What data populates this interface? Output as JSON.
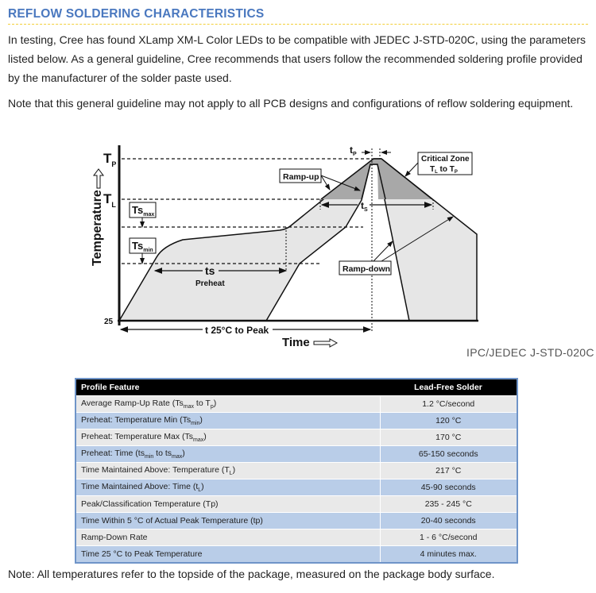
{
  "title": "REFLOW SOLDERING CHARACTERISTICS",
  "paragraphs": [
    "In testing, Cree has found XLamp XM-L Color LEDs to be compatible with JEDEC J-STD-020C, using the parameters listed below. As a general guideline, Cree recommends that users follow the recommended soldering profile provided by the manufacturer of the solder paste used.",
    "Note that this general guideline may not apply to all PCB designs and configurations of reflow soldering equipment."
  ],
  "diagram": {
    "y_axis_label": "Temperature",
    "x_axis_label": "Time",
    "tp_label": "T",
    "tp_sub": "P",
    "tl_label": "T",
    "tl_sub": "L",
    "tsmax_label": "Ts",
    "tsmax_sub": "max",
    "tsmin_label": "Ts",
    "tsmin_sub": "min",
    "t25_label": "25",
    "ts_label": "ts",
    "preheat_label": "Preheat",
    "t25_to_peak_label": "t 25°C to Peak",
    "tp_time_label": "t",
    "tp_time_sub": "P",
    "tl_time_label": "t",
    "tl_time_sub": "S",
    "rampup_label": "Ramp-up",
    "rampdown_label": "Ramp-down",
    "critical_zone_line1": "Critical Zone",
    "critical_zone_line2_a": "T",
    "critical_zone_line2_sub1": "L",
    "critical_zone_line2_b": " to T",
    "critical_zone_line2_sub2": "P",
    "source": "IPC/JEDEC J-STD-020C"
  },
  "table": {
    "headers": [
      "Profile Feature",
      "Lead-Free Solder"
    ],
    "rows": [
      {
        "feature": [
          {
            "t": "Average Ramp-Up Rate (Ts"
          },
          {
            "sub": "max"
          },
          {
            "t": " to T"
          },
          {
            "sub": "p"
          },
          {
            "t": ")"
          }
        ],
        "value": "1.2 °C/second"
      },
      {
        "feature": [
          {
            "t": "Preheat: Temperature Min (Ts"
          },
          {
            "sub": "min"
          },
          {
            "t": ")"
          }
        ],
        "value": "120 °C"
      },
      {
        "feature": [
          {
            "t": "Preheat: Temperature Max (Ts"
          },
          {
            "sub": "max"
          },
          {
            "t": ")"
          }
        ],
        "value": "170 °C"
      },
      {
        "feature": [
          {
            "t": "Preheat: Time (ts"
          },
          {
            "sub": "min"
          },
          {
            "t": " to ts"
          },
          {
            "sub": "max"
          },
          {
            "t": ")"
          }
        ],
        "value": "65-150 seconds"
      },
      {
        "feature": [
          {
            "t": "Time Maintained Above: Temperature (T"
          },
          {
            "sub": "L"
          },
          {
            "t": ")"
          }
        ],
        "value": "217 °C"
      },
      {
        "feature": [
          {
            "t": "Time Maintained Above: Time (t"
          },
          {
            "sub": "L"
          },
          {
            "t": ")"
          }
        ],
        "value": "45-90 seconds"
      },
      {
        "feature": [
          {
            "t": "Peak/Classification Temperature (Tp)"
          }
        ],
        "value": "235 - 245 °C"
      },
      {
        "feature": [
          {
            "t": "Time Within 5 °C of Actual Peak Temperature (tp)"
          }
        ],
        "value": "20-40 seconds"
      },
      {
        "feature": [
          {
            "t": "Ramp-Down Rate"
          }
        ],
        "value": "1 - 6 °C/second"
      },
      {
        "feature": [
          {
            "t": "Time 25 °C to Peak Temperature"
          }
        ],
        "value": "4 minutes max."
      }
    ]
  },
  "note": "Note: All temperatures refer to the topside of the package, measured on the package body surface.",
  "colors": {
    "title": "#4a78bf",
    "rule": "#f2cf3a",
    "table_header": "#000000",
    "row_odd": "#e9e9e9",
    "row_even": "#b9cde8",
    "table_border": "#6f94c8"
  }
}
